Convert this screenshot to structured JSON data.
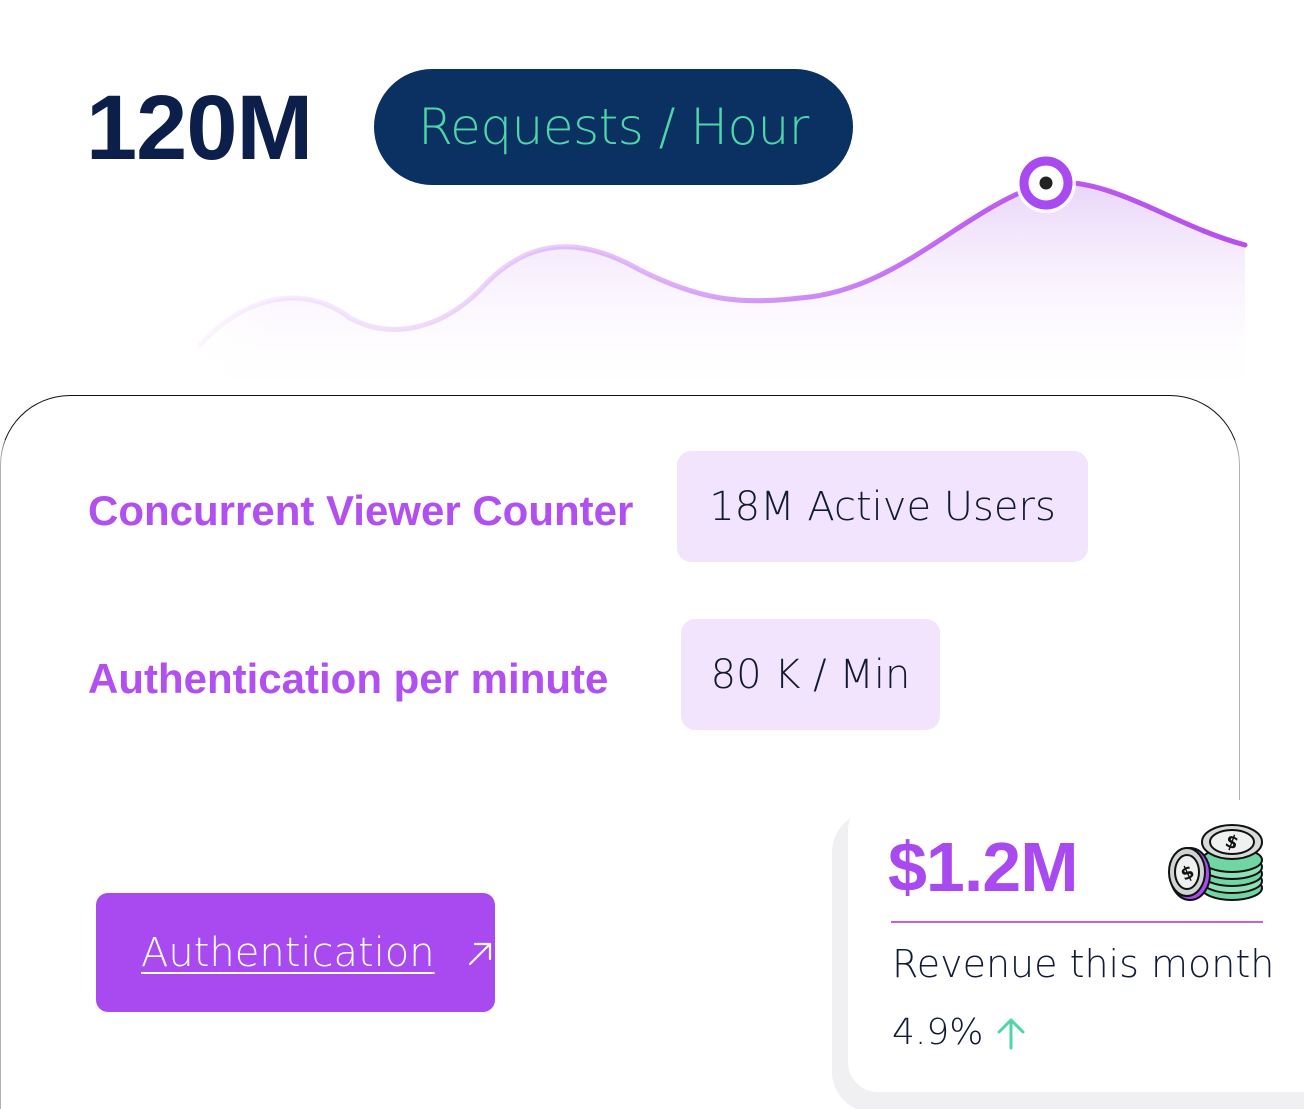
{
  "header": {
    "stat_value": "120M",
    "stat_unit": "Requests / Hour"
  },
  "metrics": [
    {
      "label": "Concurrent Viewer Counter",
      "value": "18M Active Users"
    },
    {
      "label": "Authentication per minute",
      "value": "80 K / Min"
    }
  ],
  "action": {
    "label": "Authentication",
    "icon": "arrow-up-right-icon"
  },
  "revenue": {
    "amount": "$1.2M",
    "caption": "Revenue this month",
    "change": "4.9%",
    "trend_icon": "arrow-up-icon",
    "image_icon": "coins-stack-icon"
  },
  "colors": {
    "navy": "#0c1f4a",
    "pill_bg": "#0a3161",
    "pill_text": "#4fd6a8",
    "accent_purple": "#a94af0",
    "label_purple": "#b14ff0",
    "value_bg": "#f3e4fd",
    "trend_green": "#4fd6a8"
  }
}
